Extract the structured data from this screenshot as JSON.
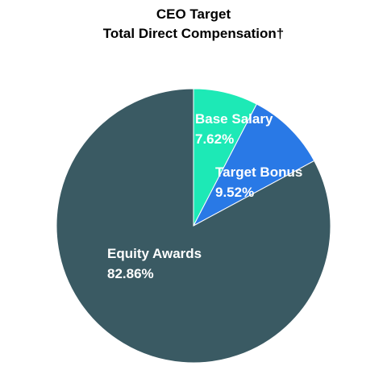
{
  "chart_data": {
    "type": "pie",
    "title": "CEO Target",
    "subtitle": "Total Direct Compensation†",
    "slices": [
      {
        "label": "Base Salary",
        "value": 7.62,
        "value_label": "7.62%",
        "color": "#1de9b6"
      },
      {
        "label": "Target Bonus",
        "value": 9.52,
        "value_label": "9.52%",
        "color": "#2979e6"
      },
      {
        "label": "Equity Awards",
        "value": 82.86,
        "value_label": "82.86%",
        "color": "#3a5a63"
      }
    ],
    "start_angle": "12 o'clock",
    "direction": "clockwise",
    "legend": "none"
  }
}
